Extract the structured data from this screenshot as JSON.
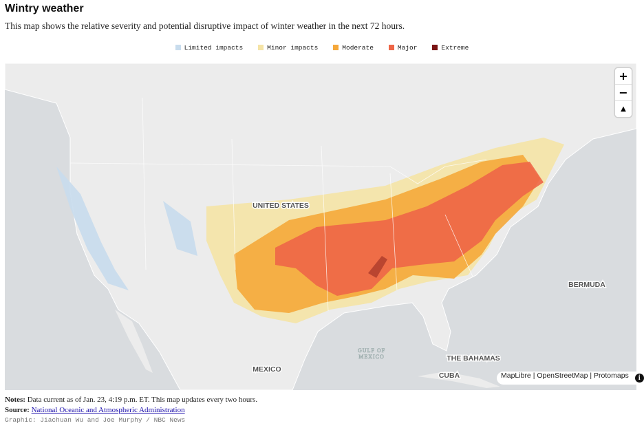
{
  "header": {
    "title": "Wintry weather",
    "subtitle": "This map shows the relative severity and potential disruptive impact of winter weather in the next 72 hours."
  },
  "legend": [
    {
      "label": "Limited impacts",
      "color": "#c8dced"
    },
    {
      "label": "Minor impacts",
      "color": "#f5e4a6"
    },
    {
      "label": "Moderate",
      "color": "#f5a83a"
    },
    {
      "label": "Major",
      "color": "#ee6647"
    },
    {
      "label": "Extreme",
      "color": "#7a1414"
    }
  ],
  "map": {
    "labels": [
      "UNITED STATES",
      "BERMUDA",
      "THE BAHAMAS",
      "MEXICO",
      "CUBA"
    ],
    "gulf_label": [
      "GULF OF",
      "MEXICO"
    ],
    "controls": [
      "+",
      "−"
    ],
    "attribution": "MapLibre | OpenStreetMap | Protomaps"
  },
  "footer": {
    "notes_label": "Notes:",
    "notes": "Data current as of Jan. 23, 4:19 p.m. ET. This map updates every two hours.",
    "source_label": "Source:",
    "source": "National Oceanic and Atmospheric Administration",
    "credit": "Graphic: Jiachuan Wu and Joe Murphy / NBC News"
  }
}
